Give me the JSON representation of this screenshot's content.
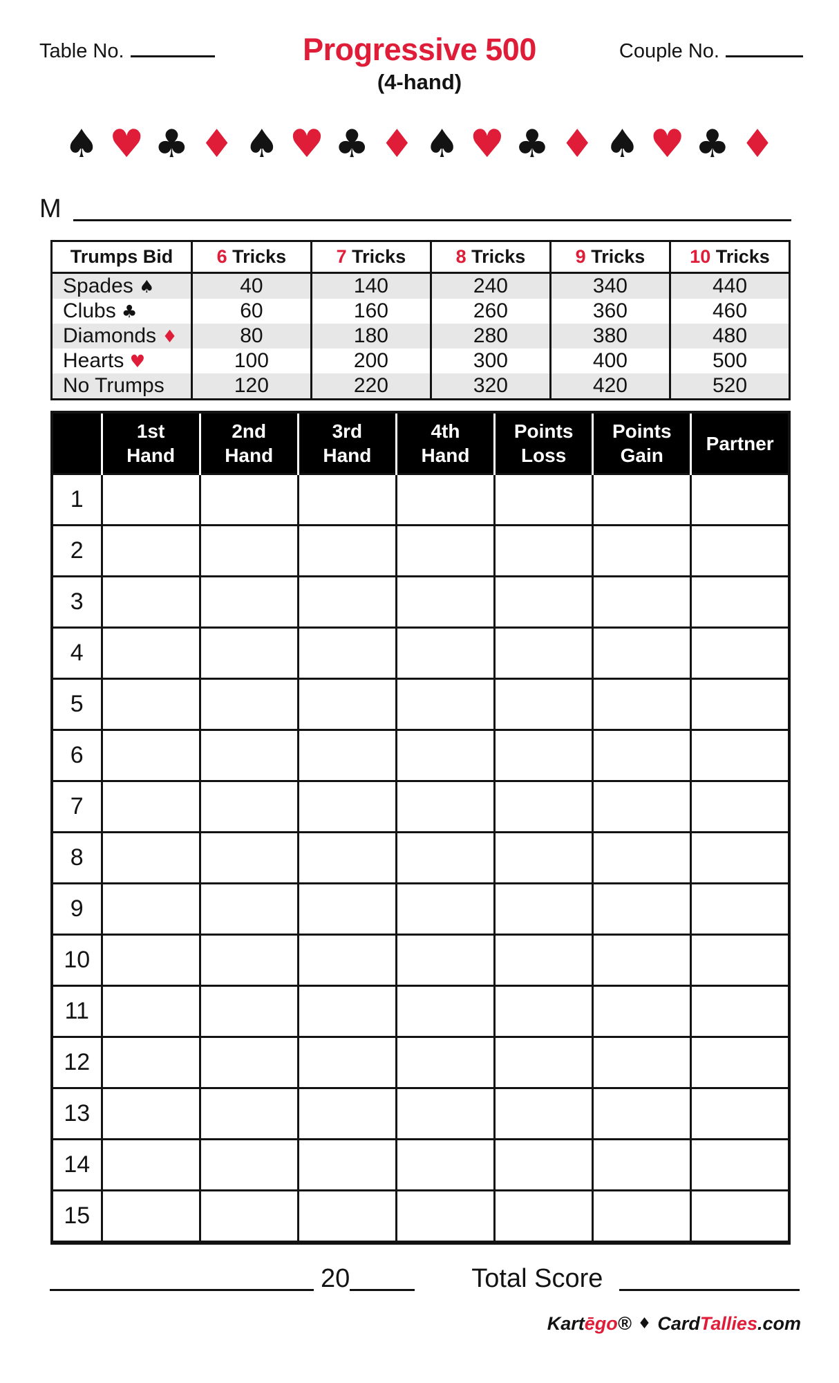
{
  "header": {
    "table_no_label": "Table No.",
    "title": "Progressive 500",
    "couple_no_label": "Couple No.",
    "subtitle": "(4-hand)"
  },
  "m_line_label": "M",
  "suits_row": [
    "spade",
    "heart",
    "club",
    "diamond",
    "spade",
    "heart",
    "club",
    "diamond",
    "spade",
    "heart",
    "club",
    "diamond",
    "spade",
    "heart",
    "club",
    "diamond"
  ],
  "suit_glyphs": {
    "spade": "♠",
    "heart": "♥",
    "club": "♣",
    "diamond": "♦"
  },
  "trumps_table": {
    "header": {
      "bid": "Trumps Bid",
      "tricks": [
        {
          "n": "6",
          "label": "Tricks"
        },
        {
          "n": "7",
          "label": "Tricks"
        },
        {
          "n": "8",
          "label": "Tricks"
        },
        {
          "n": "9",
          "label": "Tricks"
        },
        {
          "n": "10",
          "label": "Tricks"
        }
      ]
    },
    "rows": [
      {
        "label": "Spades",
        "suit": "spade",
        "values": [
          "40",
          "140",
          "240",
          "340",
          "440"
        ],
        "shaded": true
      },
      {
        "label": "Clubs",
        "suit": "club",
        "values": [
          "60",
          "160",
          "260",
          "360",
          "460"
        ],
        "shaded": false
      },
      {
        "label": "Diamonds",
        "suit": "diamond",
        "values": [
          "80",
          "180",
          "280",
          "380",
          "480"
        ],
        "shaded": true
      },
      {
        "label": "Hearts",
        "suit": "heart",
        "values": [
          "100",
          "200",
          "300",
          "400",
          "500"
        ],
        "shaded": false
      },
      {
        "label": "No Trumps",
        "suit": null,
        "values": [
          "120",
          "220",
          "320",
          "420",
          "520"
        ],
        "shaded": true
      }
    ]
  },
  "score_table": {
    "columns": [
      [
        "1st",
        "Hand"
      ],
      [
        "2nd",
        "Hand"
      ],
      [
        "3rd",
        "Hand"
      ],
      [
        "4th",
        "Hand"
      ],
      [
        "Points",
        "Loss"
      ],
      [
        "Points",
        "Gain"
      ],
      [
        "Partner"
      ]
    ],
    "row_numbers": [
      "1",
      "2",
      "3",
      "4",
      "5",
      "6",
      "7",
      "8",
      "9",
      "10",
      "11",
      "12",
      "13",
      "14",
      "15"
    ]
  },
  "bottom": {
    "year_prefix": "20",
    "total_score_label": "Total Score"
  },
  "brand": {
    "kart": "Kart",
    "ego": "ēgo",
    "reg": "®",
    "separator": "♦",
    "card": "Card",
    "tallies": "Tallies",
    "dotcom": ".com"
  },
  "colors": {
    "red": "#df1d39",
    "shaded_row": "#e7e7e8",
    "header_bg": "#000000",
    "header_text": "#ffffff"
  }
}
